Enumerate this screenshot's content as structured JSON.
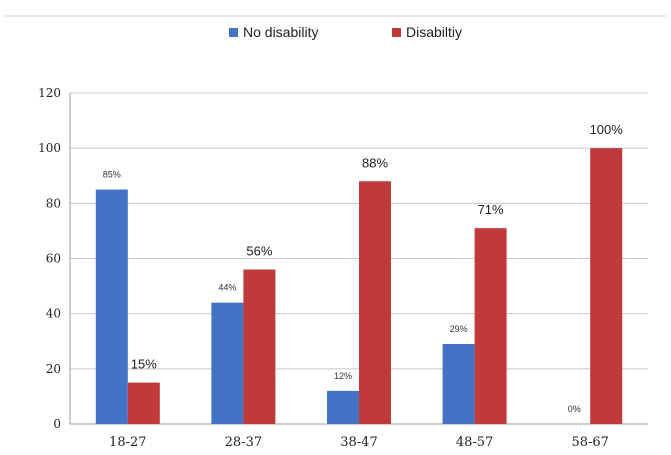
{
  "chart_data": {
    "type": "bar",
    "categories": [
      "18-27",
      "28-37",
      "38-47",
      "48-57",
      "58-67"
    ],
    "series": [
      {
        "name": "No disability",
        "color": "#4472c4",
        "values": [
          85,
          44,
          12,
          29,
          0
        ],
        "labels": [
          "85%",
          "44%",
          "12%",
          "29%",
          "0%"
        ]
      },
      {
        "name": "Disabiltiy",
        "color": "#c0393b",
        "values": [
          15,
          56,
          88,
          71,
          100
        ],
        "labels": [
          "15%",
          "56%",
          "88%",
          "71%",
          "100%"
        ]
      }
    ],
    "yticks": [
      "0",
      "20",
      "40",
      "60",
      "80",
      "100",
      "120"
    ],
    "ylim": [
      0,
      120
    ],
    "grid": true,
    "legend": "top-center",
    "title": "",
    "xlabel": "",
    "ylabel": ""
  }
}
